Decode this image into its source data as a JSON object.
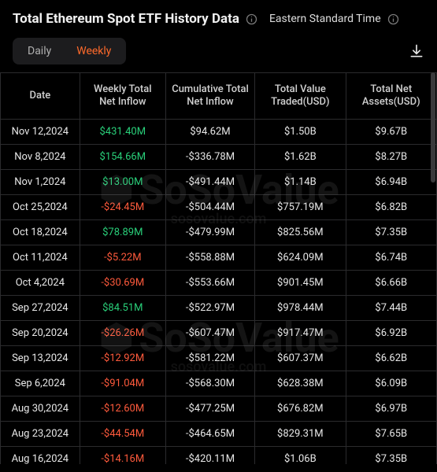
{
  "header": {
    "title": "Total Ethereum Spot ETF History Data",
    "timezone": "Eastern Standard Time"
  },
  "tabs": {
    "daily": "Daily",
    "weekly": "Weekly",
    "active": "weekly"
  },
  "watermark": {
    "brand": "SoSoValue",
    "url": "sosovalue.com"
  },
  "table": {
    "columns": [
      "Date",
      "Weekly Total Net Inflow",
      "Cumulative Total Net Inflow",
      "Total Value Traded(USD)",
      "Total Net Assets(USD)"
    ],
    "rows": [
      {
        "date": "Nov 12,2024",
        "inflow": "$431.40M",
        "inflow_sign": "pos",
        "cum": "$94.62M",
        "traded": "$1.50B",
        "assets": "$9.67B"
      },
      {
        "date": "Nov 8,2024",
        "inflow": "$154.66M",
        "inflow_sign": "pos",
        "cum": "-$336.78M",
        "traded": "$1.62B",
        "assets": "$8.27B"
      },
      {
        "date": "Nov 1,2024",
        "inflow": "$13.00M",
        "inflow_sign": "pos",
        "cum": "-$491.44M",
        "traded": "$1.14B",
        "assets": "$6.94B"
      },
      {
        "date": "Oct 25,2024",
        "inflow": "-$24.45M",
        "inflow_sign": "neg",
        "cum": "-$504.44M",
        "traded": "$757.19M",
        "assets": "$6.82B"
      },
      {
        "date": "Oct 18,2024",
        "inflow": "$78.89M",
        "inflow_sign": "pos",
        "cum": "-$479.99M",
        "traded": "$825.56M",
        "assets": "$7.35B"
      },
      {
        "date": "Oct 11,2024",
        "inflow": "-$5.22M",
        "inflow_sign": "neg",
        "cum": "-$558.88M",
        "traded": "$624.09M",
        "assets": "$6.74B"
      },
      {
        "date": "Oct 4,2024",
        "inflow": "-$30.69M",
        "inflow_sign": "neg",
        "cum": "-$553.66M",
        "traded": "$901.45M",
        "assets": "$6.66B"
      },
      {
        "date": "Sep 27,2024",
        "inflow": "$84.51M",
        "inflow_sign": "pos",
        "cum": "-$522.97M",
        "traded": "$978.44M",
        "assets": "$7.44B"
      },
      {
        "date": "Sep 20,2024",
        "inflow": "-$26.26M",
        "inflow_sign": "neg",
        "cum": "-$607.47M",
        "traded": "$917.47M",
        "assets": "$6.92B"
      },
      {
        "date": "Sep 13,2024",
        "inflow": "-$12.92M",
        "inflow_sign": "neg",
        "cum": "-$581.22M",
        "traded": "$607.37M",
        "assets": "$6.62B"
      },
      {
        "date": "Sep 6,2024",
        "inflow": "-$91.04M",
        "inflow_sign": "neg",
        "cum": "-$568.30M",
        "traded": "$628.38M",
        "assets": "$6.09B"
      },
      {
        "date": "Aug 30,2024",
        "inflow": "-$12.60M",
        "inflow_sign": "neg",
        "cum": "-$477.25M",
        "traded": "$676.82M",
        "assets": "$6.97B"
      },
      {
        "date": "Aug 23,2024",
        "inflow": "-$44.54M",
        "inflow_sign": "neg",
        "cum": "-$464.65M",
        "traded": "$829.31M",
        "assets": "$7.65B"
      },
      {
        "date": "Aug 16,2024",
        "inflow": "-$14.16M",
        "inflow_sign": "neg",
        "cum": "-$420.11M",
        "traded": "$1.06B",
        "assets": "$7.35B"
      }
    ]
  },
  "colors": {
    "background": "#000000",
    "text": "#e8e8e8",
    "border": "#2b2b2d",
    "positive": "#29d07a",
    "negative": "#ff5a3c",
    "accent": "#ff6a2b",
    "muted": "#7a7a7a",
    "tab_bg": "#1c1c1e",
    "scroll_thumb": "#3a3a3c"
  }
}
